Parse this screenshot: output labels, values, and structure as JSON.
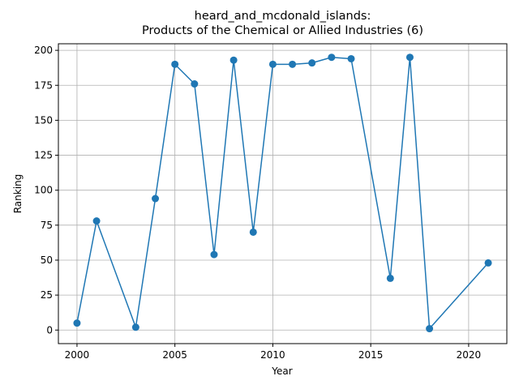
{
  "chart_data": {
    "type": "line",
    "title": "heard_and_mcdonald_islands:\nProducts of the Chemical or Allied Industries (6)",
    "xlabel": "Year",
    "ylabel": "Ranking",
    "xlim": [
      1999.05,
      2021.95
    ],
    "ylim": [
      -9.7,
      204.7
    ],
    "xticks": [
      2000,
      2005,
      2010,
      2015,
      2020
    ],
    "yticks": [
      0,
      25,
      50,
      75,
      100,
      125,
      150,
      175,
      200
    ],
    "grid": true,
    "color": "#1f77b4",
    "marker": "circle",
    "series": [
      {
        "x": [
          2000,
          2001,
          2003,
          2004,
          2005,
          2006,
          2007,
          2008,
          2009,
          2010,
          2011,
          2012,
          2013,
          2014,
          2016,
          2017,
          2018,
          2021
        ],
        "values": [
          5,
          78,
          2,
          94,
          190,
          176,
          54,
          193,
          70,
          190,
          190,
          191,
          195,
          194,
          37,
          195,
          1,
          48
        ]
      }
    ]
  }
}
